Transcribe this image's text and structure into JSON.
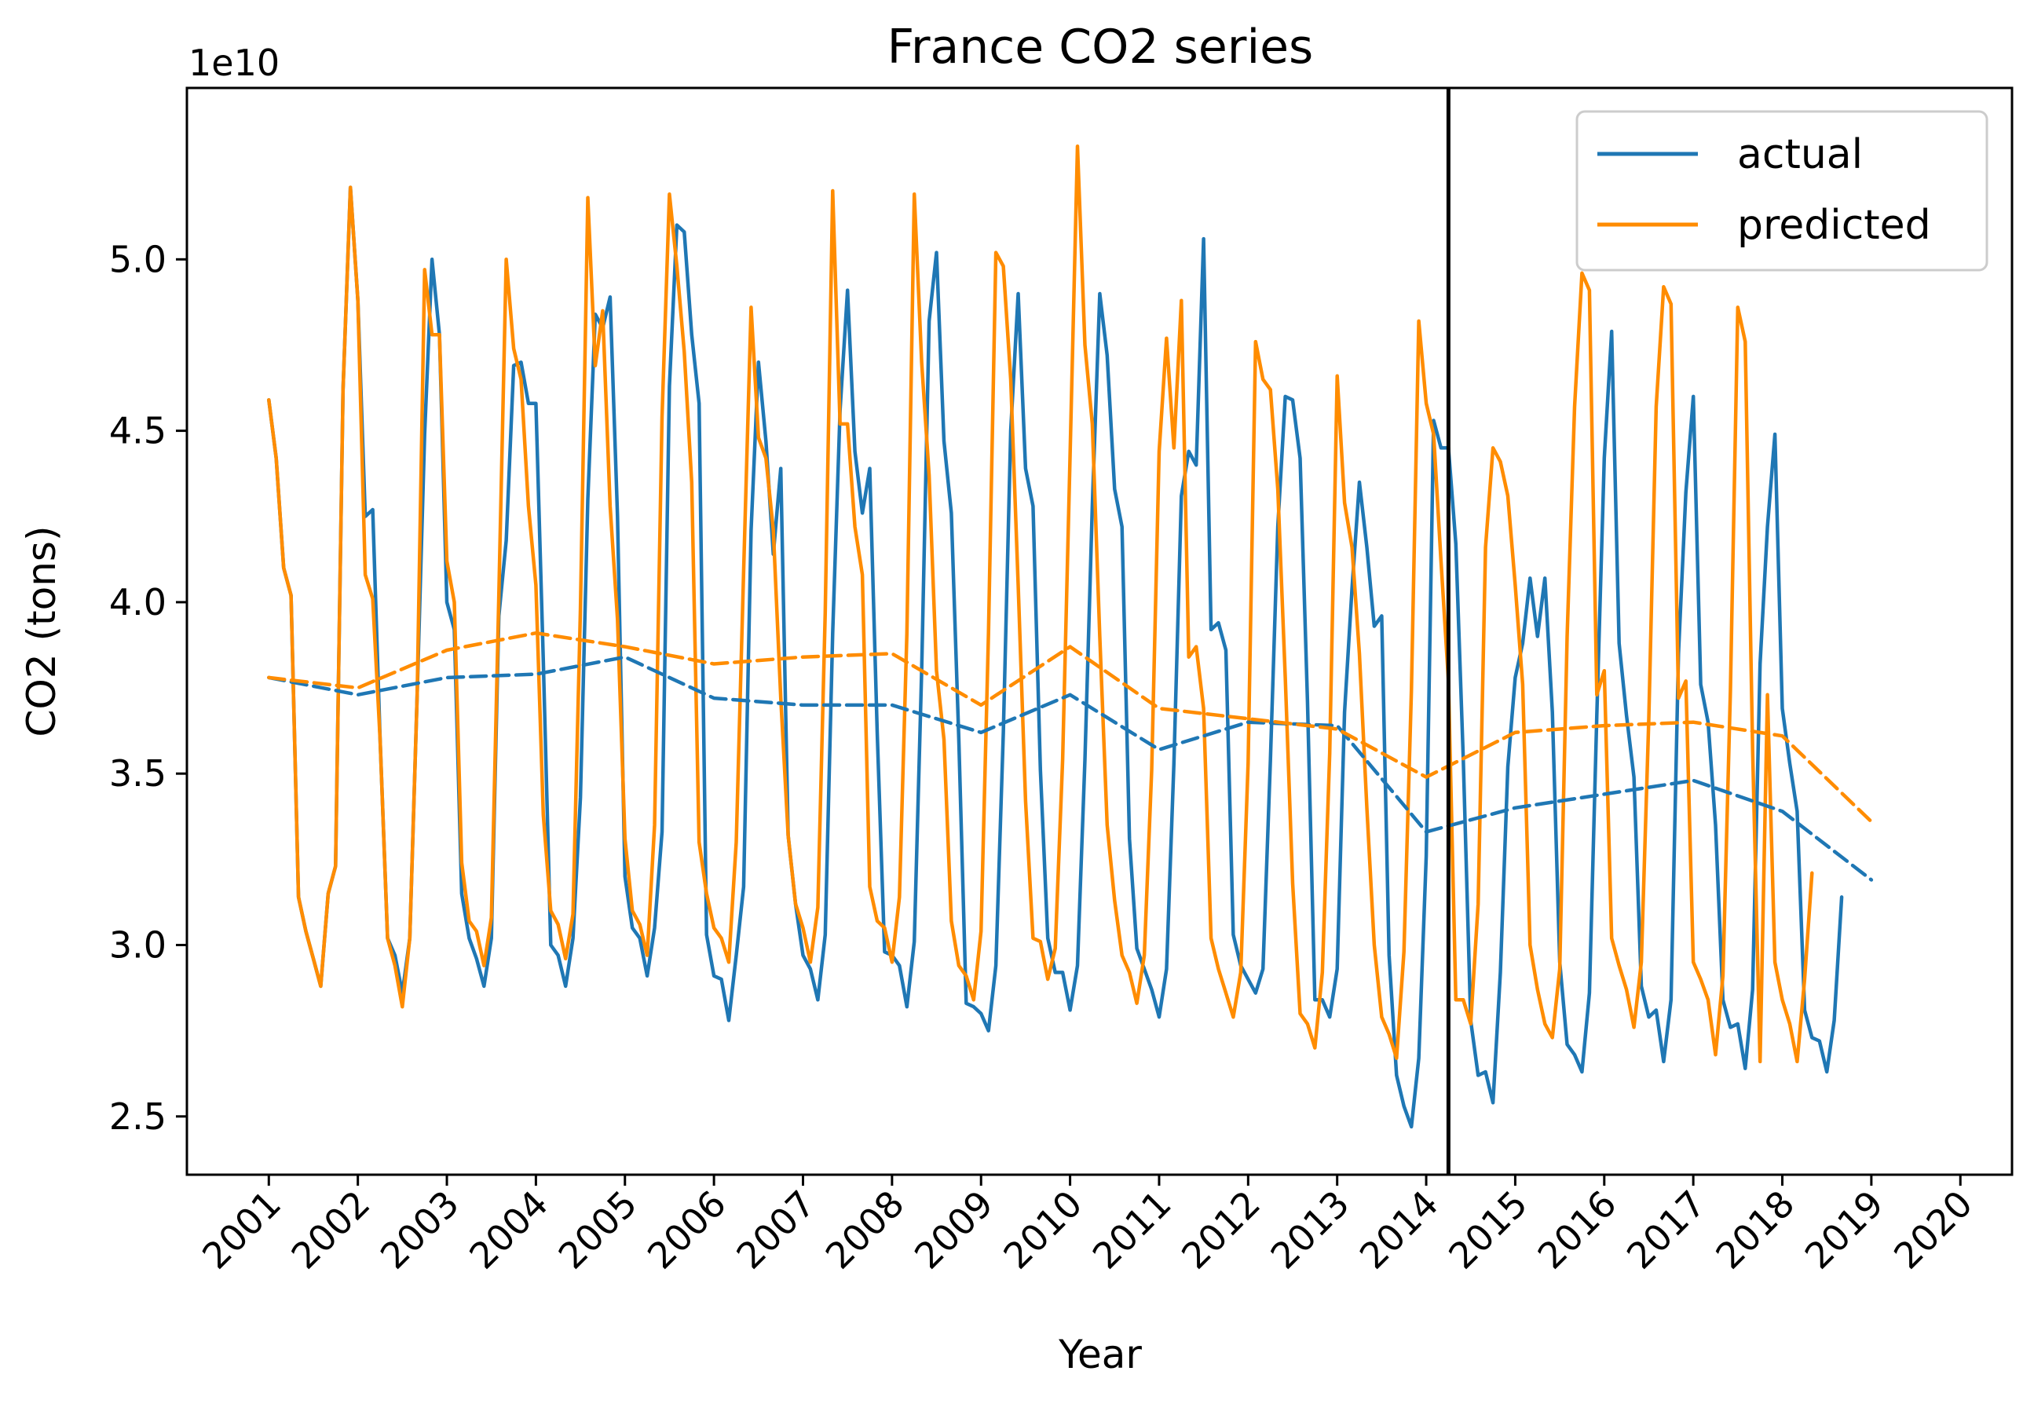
{
  "chart_data": {
    "type": "line",
    "title": "France  CO2 series",
    "xlabel": "Year",
    "ylabel": "CO2 (tons)",
    "y_offset_label": "1e10",
    "y_scale": 10000000000.0,
    "xlim": [
      2000.08,
      2020.58
    ],
    "ylim": [
      2.33,
      5.5
    ],
    "x_ticks": [
      2001,
      2002,
      2003,
      2004,
      2005,
      2006,
      2007,
      2008,
      2009,
      2010,
      2011,
      2012,
      2013,
      2014,
      2015,
      2016,
      2017,
      2018,
      2019,
      2020
    ],
    "x_tick_labels": [
      "2001",
      "2002",
      "2003",
      "2004",
      "2005",
      "2006",
      "2007",
      "2008",
      "2009",
      "2010",
      "2011",
      "2012",
      "2013",
      "2014",
      "2015",
      "2016",
      "2017",
      "2018",
      "2019",
      "2020"
    ],
    "y_ticks": [
      2.5,
      3.0,
      3.5,
      4.0,
      4.5,
      5.0
    ],
    "y_tick_labels": [
      "2.5",
      "3.0",
      "3.5",
      "4.0",
      "4.5",
      "5.0"
    ],
    "vertical_line_x": 2014.25,
    "grid": false,
    "legend": {
      "position": "top-right",
      "entries": [
        "actual",
        "predicted"
      ]
    },
    "colors": {
      "actual": "#1f77b4",
      "predicted": "#ff8c00",
      "vline": "#000000"
    },
    "series": [
      {
        "name": "actual",
        "style": "solid",
        "start_x": 2001.0,
        "step": 0.08333333,
        "values": [
          4.59,
          4.42,
          4.1,
          4.02,
          3.14,
          3.04,
          2.96,
          2.88,
          3.15,
          3.23,
          4.62,
          5.21,
          4.88,
          4.25,
          4.27,
          3.6,
          3.02,
          2.97,
          2.86,
          3.02,
          3.73,
          4.49,
          5.0,
          4.78,
          4.0,
          3.92,
          3.15,
          3.02,
          2.96,
          2.88,
          3.02,
          3.96,
          4.18,
          4.69,
          4.7,
          4.58,
          4.58,
          3.83,
          3.0,
          2.97,
          2.88,
          3.02,
          3.43,
          4.3,
          4.84,
          4.8,
          4.89,
          4.25,
          3.2,
          3.05,
          3.02,
          2.91,
          3.05,
          3.33,
          4.63,
          5.1,
          5.08,
          4.78,
          4.58,
          3.03,
          2.91,
          2.9,
          2.78,
          2.97,
          3.17,
          4.21,
          4.7,
          4.47,
          4.14,
          4.39,
          3.32,
          3.12,
          2.97,
          2.93,
          2.84,
          3.03,
          3.91,
          4.56,
          4.91,
          4.44,
          4.26,
          4.39,
          3.62,
          2.98,
          2.97,
          2.94,
          2.82,
          3.01,
          3.8,
          4.82,
          5.02,
          4.47,
          4.26,
          3.6,
          2.83,
          2.82,
          2.8,
          2.75,
          2.94,
          3.62,
          4.5,
          4.9,
          4.39,
          4.28,
          3.51,
          3.02,
          2.92,
          2.92,
          2.81,
          2.94,
          3.54,
          4.28,
          4.9,
          4.72,
          4.33,
          4.22,
          3.31,
          2.99,
          2.93,
          2.87,
          2.79,
          2.93,
          3.53,
          4.31,
          4.44,
          4.4,
          5.06,
          3.92,
          3.94,
          3.86,
          3.03,
          2.94,
          2.9,
          2.86,
          2.93,
          3.54,
          4.22,
          4.6,
          4.59,
          4.42,
          3.71,
          2.84,
          2.84,
          2.79,
          2.93,
          3.68,
          4.04,
          4.35,
          4.16,
          3.93,
          3.96,
          2.97,
          2.62,
          2.53,
          2.47,
          2.67,
          3.26,
          4.53,
          4.45,
          4.45,
          4.17,
          3.54,
          2.78,
          2.62,
          2.63,
          2.54,
          2.92,
          3.52,
          3.78,
          3.88,
          4.07,
          3.9,
          4.07,
          3.68,
          2.95,
          2.71,
          2.68,
          2.63,
          2.86,
          3.67,
          4.42,
          4.79,
          3.88,
          3.67,
          3.49,
          2.88,
          2.79,
          2.81,
          2.66,
          2.84,
          3.85,
          4.32,
          4.6,
          3.76,
          3.65,
          3.35,
          2.84,
          2.76,
          2.77,
          2.64,
          2.87,
          3.82,
          4.22,
          4.49,
          3.69,
          3.53,
          3.39,
          2.81,
          2.73,
          2.72,
          2.63,
          2.78,
          3.14
        ]
      },
      {
        "name": "predicted",
        "style": "solid",
        "start_x": 2001.0,
        "step": 0.08333333,
        "values": [
          4.59,
          4.42,
          4.1,
          4.02,
          3.14,
          3.04,
          2.96,
          2.88,
          3.15,
          3.23,
          4.62,
          5.21,
          4.88,
          4.08,
          4.01,
          3.6,
          3.02,
          2.94,
          2.82,
          3.02,
          3.73,
          4.97,
          4.78,
          4.78,
          4.12,
          4.0,
          3.24,
          3.07,
          3.04,
          2.94,
          3.08,
          4.02,
          5.0,
          4.74,
          4.65,
          4.28,
          4.05,
          3.38,
          3.1,
          3.06,
          2.96,
          3.09,
          3.98,
          5.18,
          4.69,
          4.85,
          4.28,
          3.95,
          3.31,
          3.1,
          3.06,
          2.97,
          3.35,
          4.54,
          5.19,
          4.98,
          4.73,
          4.35,
          3.3,
          3.15,
          3.05,
          3.02,
          2.95,
          3.3,
          4.09,
          4.86,
          4.48,
          4.42,
          4.21,
          3.72,
          3.32,
          3.12,
          3.05,
          2.95,
          3.11,
          3.97,
          5.2,
          4.52,
          4.52,
          4.22,
          4.08,
          3.17,
          3.07,
          3.05,
          2.95,
          3.14,
          3.91,
          5.19,
          4.7,
          4.37,
          3.8,
          3.6,
          3.07,
          2.94,
          2.91,
          2.84,
          3.04,
          3.91,
          5.02,
          4.98,
          4.65,
          4.05,
          3.42,
          3.02,
          3.01,
          2.9,
          2.99,
          3.54,
          4.43,
          5.33,
          4.75,
          4.52,
          3.9,
          3.35,
          3.13,
          2.97,
          2.92,
          2.83,
          2.97,
          3.51,
          4.44,
          4.77,
          4.45,
          4.88,
          3.84,
          3.87,
          3.69,
          3.02,
          2.93,
          2.86,
          2.79,
          2.92,
          3.53,
          4.76,
          4.65,
          4.62,
          4.33,
          3.78,
          3.18,
          2.8,
          2.77,
          2.7,
          2.92,
          3.56,
          4.66,
          4.29,
          4.16,
          3.85,
          3.4,
          3.0,
          2.79,
          2.74,
          2.67,
          2.98,
          3.74,
          4.82,
          4.58,
          4.49,
          4.12,
          3.77,
          2.84,
          2.84,
          2.77,
          3.12,
          4.16,
          4.45,
          4.41,
          4.31,
          4.05,
          3.76,
          3.0,
          2.87,
          2.77,
          2.73,
          2.93,
          3.9,
          4.57,
          4.96,
          4.91,
          3.73,
          3.8,
          3.02,
          2.94,
          2.87,
          2.76,
          2.95,
          3.66,
          4.57,
          4.92,
          4.87,
          3.72,
          3.77,
          2.95,
          2.9,
          2.84,
          2.68,
          2.91,
          3.74,
          4.86,
          4.76,
          3.57,
          2.66,
          3.73,
          2.95,
          2.84,
          2.77,
          2.66,
          2.9,
          3.21
        ]
      },
      {
        "name": "",
        "style": "dashed",
        "color_of": "actual",
        "x": [
          2001.0,
          2002.0,
          2003.0,
          2004.0,
          2005.0,
          2006.0,
          2007.0,
          2008.0,
          2009.0,
          2010.0,
          2011.0,
          2012.0,
          2013.0,
          2014.0,
          2015.0,
          2016.0,
          2017.0,
          2018.0,
          2019.0
        ],
        "values": [
          3.78,
          3.73,
          3.78,
          3.79,
          3.84,
          3.72,
          3.7,
          3.7,
          3.62,
          3.73,
          3.57,
          3.65,
          3.64,
          3.33,
          3.4,
          3.44,
          3.48,
          3.39,
          3.19
        ]
      },
      {
        "name": "",
        "style": "dashed",
        "color_of": "predicted",
        "x": [
          2001.0,
          2002.0,
          2003.0,
          2004.0,
          2005.0,
          2006.0,
          2007.0,
          2008.0,
          2009.0,
          2010.0,
          2011.0,
          2012.0,
          2013.0,
          2014.0,
          2015.0,
          2016.0,
          2017.0,
          2018.0,
          2019.0
        ],
        "values": [
          3.78,
          3.75,
          3.86,
          3.91,
          3.87,
          3.82,
          3.84,
          3.85,
          3.7,
          3.87,
          3.69,
          3.66,
          3.63,
          3.49,
          3.62,
          3.64,
          3.65,
          3.61,
          3.36
        ]
      }
    ]
  }
}
